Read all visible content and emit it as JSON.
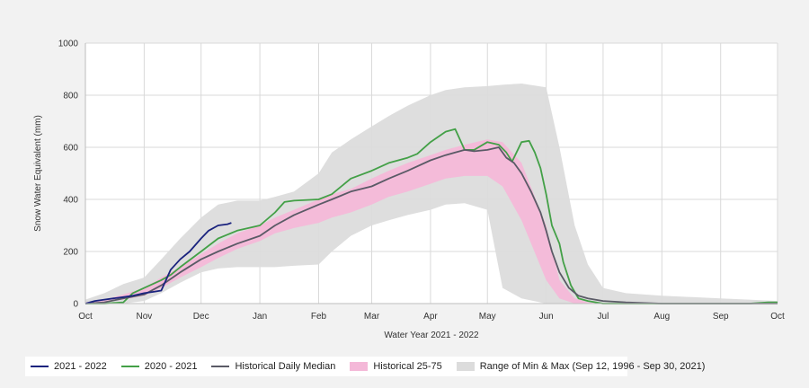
{
  "chart_data": {
    "type": "line",
    "title": "",
    "xlabel": "Water Year 2021 - 2022",
    "ylabel": "Snow Water Equivalent (mm)",
    "ylim": [
      0,
      1000
    ],
    "xlim": [
      0,
      365
    ],
    "yticks": [
      0,
      200,
      400,
      600,
      800,
      1000
    ],
    "xticks": [
      {
        "label": "Oct",
        "day": 0
      },
      {
        "label": "Nov",
        "day": 31
      },
      {
        "label": "Dec",
        "day": 61
      },
      {
        "label": "Jan",
        "day": 92
      },
      {
        "label": "Feb",
        "day": 123
      },
      {
        "label": "Mar",
        "day": 151
      },
      {
        "label": "Apr",
        "day": 182
      },
      {
        "label": "May",
        "day": 212
      },
      {
        "label": "Jun",
        "day": 243
      },
      {
        "label": "Jul",
        "day": 273
      },
      {
        "label": "Aug",
        "day": 304
      },
      {
        "label": "Sep",
        "day": 335
      },
      {
        "label": "Oct",
        "day": 365
      }
    ],
    "grid": true,
    "legend_position": "bottom-left",
    "colors": {
      "wy2022": "#1a237e",
      "wy2021": "#43a047",
      "median": "#5a5a66",
      "p25_75": "#f4b8d8",
      "minmax": "#dcdcdc"
    },
    "bands": [
      {
        "name": "Range of Min & Max (Sep 12, 1996 - Sep 30, 2021)",
        "x": [
          0,
          10,
          20,
          31,
          40,
          50,
          61,
          70,
          80,
          92,
          100,
          110,
          123,
          130,
          140,
          151,
          160,
          170,
          182,
          190,
          200,
          212,
          220,
          230,
          243,
          250,
          258,
          265,
          273,
          285,
          304,
          320,
          335,
          350,
          365
        ],
        "lower": [
          0,
          0,
          0,
          10,
          40,
          80,
          120,
          135,
          140,
          140,
          140,
          145,
          150,
          200,
          260,
          300,
          320,
          340,
          360,
          380,
          385,
          360,
          60,
          20,
          0,
          0,
          0,
          0,
          0,
          0,
          0,
          0,
          0,
          0,
          0
        ],
        "upper": [
          15,
          40,
          75,
          100,
          170,
          250,
          330,
          380,
          395,
          395,
          410,
          430,
          500,
          580,
          630,
          680,
          720,
          760,
          800,
          820,
          830,
          835,
          840,
          845,
          830,
          600,
          300,
          150,
          60,
          40,
          30,
          25,
          20,
          15,
          10
        ]
      },
      {
        "name": "Historical 25-75",
        "x": [
          0,
          10,
          20,
          31,
          40,
          50,
          61,
          70,
          80,
          92,
          100,
          110,
          123,
          130,
          140,
          151,
          160,
          170,
          182,
          190,
          200,
          212,
          220,
          230,
          243,
          250,
          258,
          265,
          273,
          285,
          304,
          320,
          335,
          350,
          365
        ],
        "lower": [
          0,
          5,
          15,
          30,
          60,
          100,
          140,
          175,
          210,
          240,
          270,
          290,
          310,
          330,
          350,
          380,
          410,
          430,
          460,
          480,
          490,
          490,
          450,
          320,
          90,
          20,
          0,
          0,
          0,
          0,
          0,
          0,
          0,
          0,
          0
        ],
        "upper": [
          5,
          15,
          35,
          60,
          100,
          140,
          190,
          230,
          270,
          300,
          330,
          360,
          400,
          420,
          440,
          480,
          510,
          540,
          570,
          590,
          610,
          630,
          620,
          540,
          300,
          90,
          20,
          5,
          0,
          0,
          0,
          0,
          0,
          0,
          0
        ]
      }
    ],
    "series": [
      {
        "name": "2021 - 2022",
        "x": [
          0,
          5,
          10,
          15,
          20,
          25,
          31,
          36,
          40,
          45,
          50,
          55,
          61,
          65,
          70,
          75,
          77
        ],
        "y": [
          0,
          10,
          15,
          20,
          25,
          30,
          40,
          45,
          50,
          130,
          170,
          200,
          250,
          280,
          300,
          305,
          310
        ]
      },
      {
        "name": "2020 - 2021",
        "x": [
          0,
          10,
          20,
          25,
          31,
          40,
          45,
          50,
          61,
          70,
          80,
          92,
          100,
          105,
          110,
          123,
          130,
          140,
          151,
          160,
          170,
          175,
          182,
          190,
          195,
          200,
          205,
          212,
          218,
          222,
          225,
          230,
          234,
          237,
          240,
          243,
          246,
          250,
          252,
          256,
          260,
          265,
          273,
          285,
          304,
          320,
          335,
          350,
          360,
          365
        ],
        "y": [
          0,
          0,
          5,
          40,
          60,
          90,
          110,
          140,
          200,
          250,
          280,
          300,
          350,
          390,
          395,
          400,
          420,
          480,
          510,
          540,
          560,
          575,
          620,
          660,
          670,
          590,
          590,
          620,
          610,
          580,
          545,
          620,
          625,
          580,
          520,
          420,
          300,
          230,
          160,
          70,
          20,
          10,
          0,
          0,
          0,
          0,
          0,
          0,
          5,
          5
        ]
      },
      {
        "name": "Historical Daily Median",
        "x": [
          0,
          10,
          20,
          31,
          40,
          50,
          61,
          70,
          80,
          92,
          100,
          110,
          123,
          130,
          140,
          151,
          160,
          170,
          182,
          190,
          195,
          200,
          205,
          212,
          218,
          222,
          226,
          230,
          235,
          240,
          243,
          246,
          250,
          255,
          260,
          265,
          273,
          285,
          304,
          320,
          335,
          350,
          365
        ],
        "y": [
          0,
          5,
          20,
          35,
          70,
          120,
          170,
          200,
          230,
          260,
          300,
          340,
          380,
          400,
          430,
          450,
          480,
          510,
          550,
          570,
          580,
          590,
          585,
          590,
          600,
          560,
          540,
          500,
          430,
          350,
          280,
          200,
          120,
          60,
          30,
          20,
          10,
          5,
          0,
          0,
          0,
          0,
          0
        ]
      }
    ]
  },
  "legend": {
    "items": [
      {
        "label": "2021 - 2022",
        "kind": "line",
        "color": "#1a237e"
      },
      {
        "label": "2020 - 2021",
        "kind": "line",
        "color": "#43a047"
      },
      {
        "label": "Historical Daily Median",
        "kind": "line",
        "color": "#5a5a66"
      },
      {
        "label": "Historical 25-75",
        "kind": "box",
        "color": "#f4b8d8"
      },
      {
        "label": "Range of Min & Max (Sep 12, 1996 - Sep 30, 2021)",
        "kind": "box",
        "color": "#dcdcdc"
      }
    ]
  }
}
